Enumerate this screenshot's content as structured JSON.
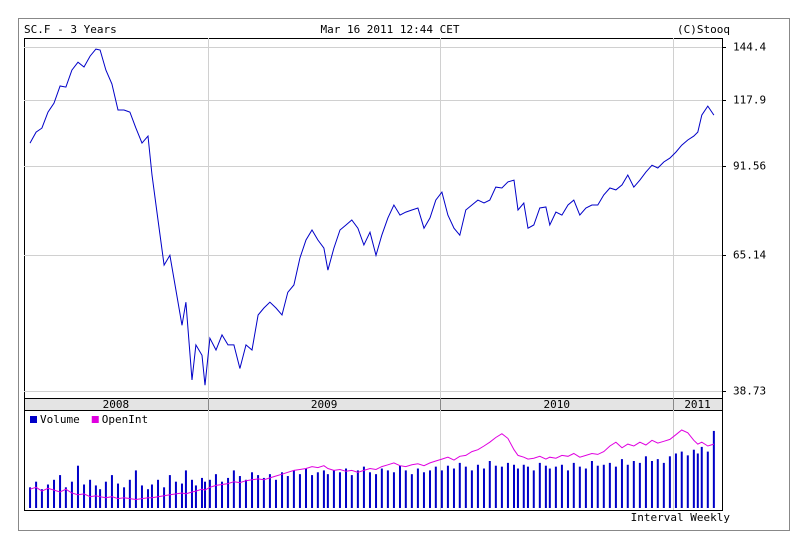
{
  "chart_data": {
    "type": "line",
    "title": "SC.F - 3 Years",
    "subtitle": "Mar 16 2011 12:44 CET",
    "source": "(C)Stooq",
    "interval_label": "Interval Weekly",
    "log_scale": true,
    "grid": true,
    "xlim": [
      2008.21,
      2011.21
    ],
    "xticks": [
      {
        "value": 2008,
        "label": "2008"
      },
      {
        "value": 2009,
        "label": "2009"
      },
      {
        "value": 2010,
        "label": "2010"
      },
      {
        "value": 2011,
        "label": "2011"
      }
    ],
    "ylim": [
      37.7,
      149.5
    ],
    "yticks": [
      144.4,
      117.9,
      91.56,
      65.14,
      38.73
    ],
    "x": [
      2008.236,
      2008.262,
      2008.287,
      2008.313,
      2008.339,
      2008.365,
      2008.39,
      2008.416,
      2008.442,
      2008.468,
      2008.494,
      2008.519,
      2008.537,
      2008.562,
      2008.588,
      2008.614,
      2008.64,
      2008.665,
      2008.691,
      2008.717,
      2008.743,
      2008.76,
      2008.786,
      2008.812,
      2008.837,
      2008.863,
      2008.889,
      2008.906,
      2008.932,
      2008.949,
      2008.975,
      2008.988,
      2009.009,
      2009.035,
      2009.061,
      2009.087,
      2009.112,
      2009.138,
      2009.164,
      2009.19,
      2009.216,
      2009.241,
      2009.267,
      2009.293,
      2009.319,
      2009.344,
      2009.37,
      2009.396,
      2009.422,
      2009.448,
      2009.473,
      2009.499,
      2009.516,
      2009.542,
      2009.568,
      2009.594,
      2009.619,
      2009.645,
      2009.671,
      2009.697,
      2009.723,
      2009.748,
      2009.774,
      2009.8,
      2009.826,
      2009.851,
      2009.877,
      2009.903,
      2009.929,
      2009.955,
      2009.98,
      2010.006,
      2010.032,
      2010.058,
      2010.083,
      2010.109,
      2010.135,
      2010.161,
      2010.187,
      2010.212,
      2010.238,
      2010.264,
      2010.29,
      2010.316,
      2010.333,
      2010.358,
      2010.376,
      2010.401,
      2010.427,
      2010.453,
      2010.47,
      2010.496,
      2010.522,
      2010.548,
      2010.573,
      2010.599,
      2010.625,
      2010.651,
      2010.676,
      2010.702,
      2010.728,
      2010.754,
      2010.78,
      2010.805,
      2010.831,
      2010.857,
      2010.883,
      2010.909,
      2010.934,
      2010.96,
      2010.986,
      2011.012,
      2011.037,
      2011.063,
      2011.089,
      2011.106,
      2011.123,
      2011.149,
      2011.175
    ],
    "series": [
      {
        "type": "line",
        "color": "#0000c8",
        "values": [
          100.0,
          104.3,
          105.9,
          112.6,
          116.5,
          124.4,
          123.9,
          132.2,
          136.3,
          133.8,
          139.5,
          143.3,
          142.8,
          132.2,
          125.4,
          113.5,
          113.5,
          112.6,
          105.9,
          100.0,
          102.7,
          88.5,
          74.5,
          62.7,
          65.1,
          57.0,
          49.8,
          54.4,
          40.4,
          46.2,
          44.4,
          39.6,
          47.4,
          45.3,
          48.0,
          46.2,
          46.2,
          42.2,
          46.2,
          45.3,
          51.8,
          53.2,
          54.4,
          53.2,
          51.8,
          56.5,
          58.1,
          64.4,
          69.0,
          71.7,
          69.0,
          66.9,
          61.5,
          66.9,
          71.7,
          73.1,
          74.5,
          72.2,
          67.7,
          71.1,
          65.1,
          70.3,
          75.1,
          78.9,
          75.9,
          76.8,
          77.4,
          78.0,
          72.2,
          75.1,
          80.4,
          82.9,
          75.9,
          72.2,
          70.3,
          77.4,
          78.9,
          80.4,
          79.5,
          80.4,
          84.5,
          84.2,
          86.2,
          86.8,
          77.4,
          79.5,
          72.2,
          73.1,
          78.0,
          78.3,
          73.1,
          76.8,
          75.9,
          78.9,
          80.4,
          75.9,
          78.0,
          78.9,
          78.9,
          82.0,
          84.2,
          83.6,
          85.2,
          88.5,
          84.5,
          86.8,
          89.5,
          91.9,
          90.9,
          93.0,
          94.4,
          96.6,
          99.2,
          101.2,
          102.7,
          104.3,
          111.3,
          115.2,
          111.3
        ]
      }
    ],
    "lower_panel": {
      "ylim": [
        0,
        100
      ],
      "series": [
        {
          "name": "Volume",
          "type": "bar",
          "color": "#0000c8",
          "values": [
            22,
            28,
            20,
            25,
            30,
            35,
            22,
            28,
            45,
            25,
            30,
            24,
            20,
            28,
            35,
            26,
            22,
            30,
            40,
            24,
            20,
            25,
            30,
            22,
            35,
            28,
            26,
            40,
            30,
            24,
            32,
            28,
            30,
            36,
            28,
            32,
            40,
            34,
            30,
            38,
            35,
            32,
            36,
            30,
            38,
            34,
            40,
            36,
            42,
            35,
            38,
            40,
            36,
            40,
            38,
            42,
            35,
            40,
            44,
            38,
            36,
            42,
            40,
            38,
            45,
            40,
            36,
            42,
            38,
            40,
            44,
            40,
            45,
            42,
            48,
            44,
            40,
            46,
            42,
            50,
            45,
            44,
            48,
            46,
            42,
            46,
            44,
            40,
            48,
            45,
            42,
            44,
            46,
            40,
            48,
            44,
            42,
            50,
            45,
            46,
            48,
            44,
            52,
            46,
            50,
            48,
            55,
            50,
            52,
            48,
            55,
            58,
            60,
            56,
            62,
            58,
            65,
            60,
            82
          ]
        },
        {
          "name": "OpenInt",
          "type": "line",
          "color": "#e000e0",
          "values": [
            20,
            22,
            18,
            21,
            19,
            17,
            20,
            16,
            14,
            15,
            12,
            13,
            12,
            11,
            12,
            10,
            11,
            10,
            9,
            10,
            11,
            11,
            12,
            13,
            14,
            15,
            16,
            15,
            17,
            18,
            20,
            19,
            22,
            24,
            25,
            26,
            28,
            27,
            29,
            30,
            31,
            30,
            32,
            34,
            36,
            38,
            40,
            41,
            42,
            44,
            43,
            45,
            42,
            40,
            41,
            39,
            40,
            38,
            40,
            42,
            41,
            44,
            46,
            48,
            45,
            44,
            46,
            47,
            45,
            48,
            50,
            52,
            54,
            51,
            55,
            56,
            60,
            62,
            66,
            70,
            75,
            79,
            74,
            62,
            56,
            54,
            52,
            53,
            55,
            52,
            54,
            53,
            56,
            55,
            58,
            54,
            56,
            58,
            57,
            60,
            66,
            70,
            64,
            68,
            66,
            70,
            67,
            72,
            69,
            71,
            73,
            78,
            83,
            80,
            72,
            68,
            70,
            66,
            68
          ]
        }
      ]
    }
  }
}
